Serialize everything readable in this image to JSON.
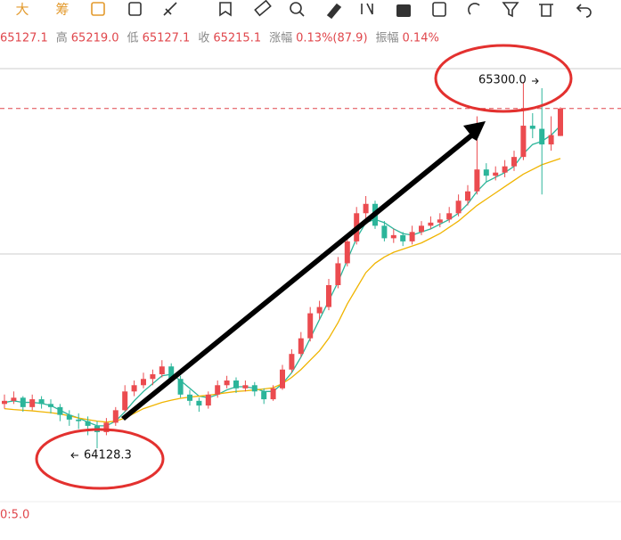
{
  "toolbar": {
    "items": [
      "大",
      "筹"
    ]
  },
  "info_bar": [
    {
      "value": "65127.1"
    },
    {
      "label": "高",
      "value": "65219.0"
    },
    {
      "label": "低",
      "value": "65127.1"
    },
    {
      "label": "收",
      "value": "65215.1"
    },
    {
      "label": "涨幅",
      "value": "0.13%(87.9)"
    },
    {
      "label": "振幅",
      "value": "0.14%"
    }
  ],
  "indicator_label": "0:5.0",
  "chart_data": {
    "type": "candlestick",
    "ylim": [
      63966,
      65391
    ],
    "up_color": "#eb4b4f",
    "down_color": "#2bb59a",
    "last_price_color": "#e0474c",
    "annotations": {
      "high": "65300.0",
      "low": "64128.3"
    },
    "candles": [
      [
        64270,
        64300,
        64255,
        64280
      ],
      [
        64280,
        64310,
        64270,
        64290
      ],
      [
        64290,
        64295,
        64245,
        64260
      ],
      [
        64260,
        64300,
        64250,
        64285
      ],
      [
        64285,
        64295,
        64255,
        64270
      ],
      [
        64270,
        64285,
        64240,
        64260
      ],
      [
        64260,
        64270,
        64215,
        64235
      ],
      [
        64235,
        64250,
        64200,
        64220
      ],
      [
        64220,
        64240,
        64190,
        64215
      ],
      [
        64215,
        64230,
        64170,
        64200
      ],
      [
        64200,
        64215,
        64128.3,
        64180
      ],
      [
        64180,
        64225,
        64170,
        64210
      ],
      [
        64210,
        64260,
        64200,
        64250
      ],
      [
        64250,
        64330,
        64245,
        64310
      ],
      [
        64310,
        64345,
        64295,
        64330
      ],
      [
        64330,
        64370,
        64320,
        64350
      ],
      [
        64350,
        64380,
        64330,
        64365
      ],
      [
        64365,
        64410,
        64355,
        64390
      ],
      [
        64390,
        64400,
        64340,
        64350
      ],
      [
        64350,
        64360,
        64290,
        64300
      ],
      [
        64300,
        64315,
        64265,
        64280
      ],
      [
        64280,
        64290,
        64245,
        64265
      ],
      [
        64265,
        64310,
        64255,
        64300
      ],
      [
        64300,
        64345,
        64290,
        64330
      ],
      [
        64330,
        64360,
        64320,
        64345
      ],
      [
        64345,
        64355,
        64305,
        64320
      ],
      [
        64320,
        64345,
        64310,
        64330
      ],
      [
        64330,
        64340,
        64295,
        64310
      ],
      [
        64310,
        64320,
        64270,
        64285
      ],
      [
        64285,
        64330,
        64280,
        64320
      ],
      [
        64320,
        64395,
        64315,
        64380
      ],
      [
        64380,
        64445,
        64370,
        64430
      ],
      [
        64430,
        64500,
        64420,
        64480
      ],
      [
        64480,
        64580,
        64470,
        64560
      ],
      [
        64560,
        64600,
        64540,
        64580
      ],
      [
        64580,
        64670,
        64570,
        64650
      ],
      [
        64650,
        64740,
        64640,
        64720
      ],
      [
        64720,
        64810,
        64710,
        64790
      ],
      [
        64790,
        64900,
        64780,
        64880
      ],
      [
        64880,
        64935,
        64860,
        64910
      ],
      [
        64910,
        64920,
        64830,
        64840
      ],
      [
        64840,
        64855,
        64790,
        64800
      ],
      [
        64800,
        64830,
        64785,
        64810
      ],
      [
        64810,
        64820,
        64775,
        64790
      ],
      [
        64790,
        64840,
        64780,
        64820
      ],
      [
        64820,
        64855,
        64810,
        64840
      ],
      [
        64840,
        64870,
        64830,
        64850
      ],
      [
        64850,
        64880,
        64835,
        64860
      ],
      [
        64860,
        64900,
        64850,
        64880
      ],
      [
        64880,
        64940,
        64870,
        64920
      ],
      [
        64920,
        64970,
        64905,
        64950
      ],
      [
        64950,
        65190,
        64940,
        65020
      ],
      [
        65020,
        65040,
        64980,
        65000
      ],
      [
        65000,
        65030,
        64985,
        65010
      ],
      [
        65010,
        65050,
        64995,
        65030
      ],
      [
        65030,
        65080,
        65015,
        65060
      ],
      [
        65060,
        65300.0,
        65050,
        65160
      ],
      [
        65160,
        65200,
        65120,
        65150
      ],
      [
        65150,
        65280,
        64940,
        65100
      ],
      [
        65100,
        65190,
        65080,
        65130
      ],
      [
        65127.1,
        65219.0,
        65127.1,
        65215.1
      ]
    ],
    "series": [
      {
        "color": "#2bb59a",
        "values": [
          64275,
          64280,
          64275,
          64275,
          64272,
          64265,
          64250,
          64235,
          64225,
          64212,
          64200,
          64200,
          64215,
          64245,
          64280,
          64310,
          64335,
          64360,
          64365,
          64345,
          64320,
          64295,
          64290,
          64300,
          64315,
          64325,
          64325,
          64320,
          64310,
          64310,
          64335,
          64370,
          64420,
          64480,
          64540,
          64600,
          64660,
          64730,
          64800,
          64850,
          64860,
          64850,
          64830,
          64815,
          64810,
          64820,
          64830,
          64845,
          64860,
          64880,
          64910,
          64950,
          64980,
          64995,
          65010,
          65030,
          65070,
          65100,
          65110,
          65130,
          65160
        ]
      },
      {
        "color": "#f0b400",
        "values": [
          64255,
          64252,
          64250,
          64248,
          64245,
          64242,
          64238,
          64232,
          64225,
          64220,
          64215,
          64212,
          64215,
          64225,
          64240,
          64255,
          64265,
          64275,
          64282,
          64288,
          64292,
          64295,
          64298,
          64302,
          64306,
          64310,
          64312,
          64315,
          64318,
          64322,
          64335,
          64355,
          64380,
          64410,
          64440,
          64480,
          64530,
          64590,
          64640,
          64690,
          64720,
          64740,
          64755,
          64765,
          64775,
          64785,
          64800,
          64815,
          64835,
          64855,
          64880,
          64905,
          64925,
          64945,
          64965,
          64985,
          65005,
          65020,
          65035,
          65045,
          65055
        ]
      }
    ]
  }
}
